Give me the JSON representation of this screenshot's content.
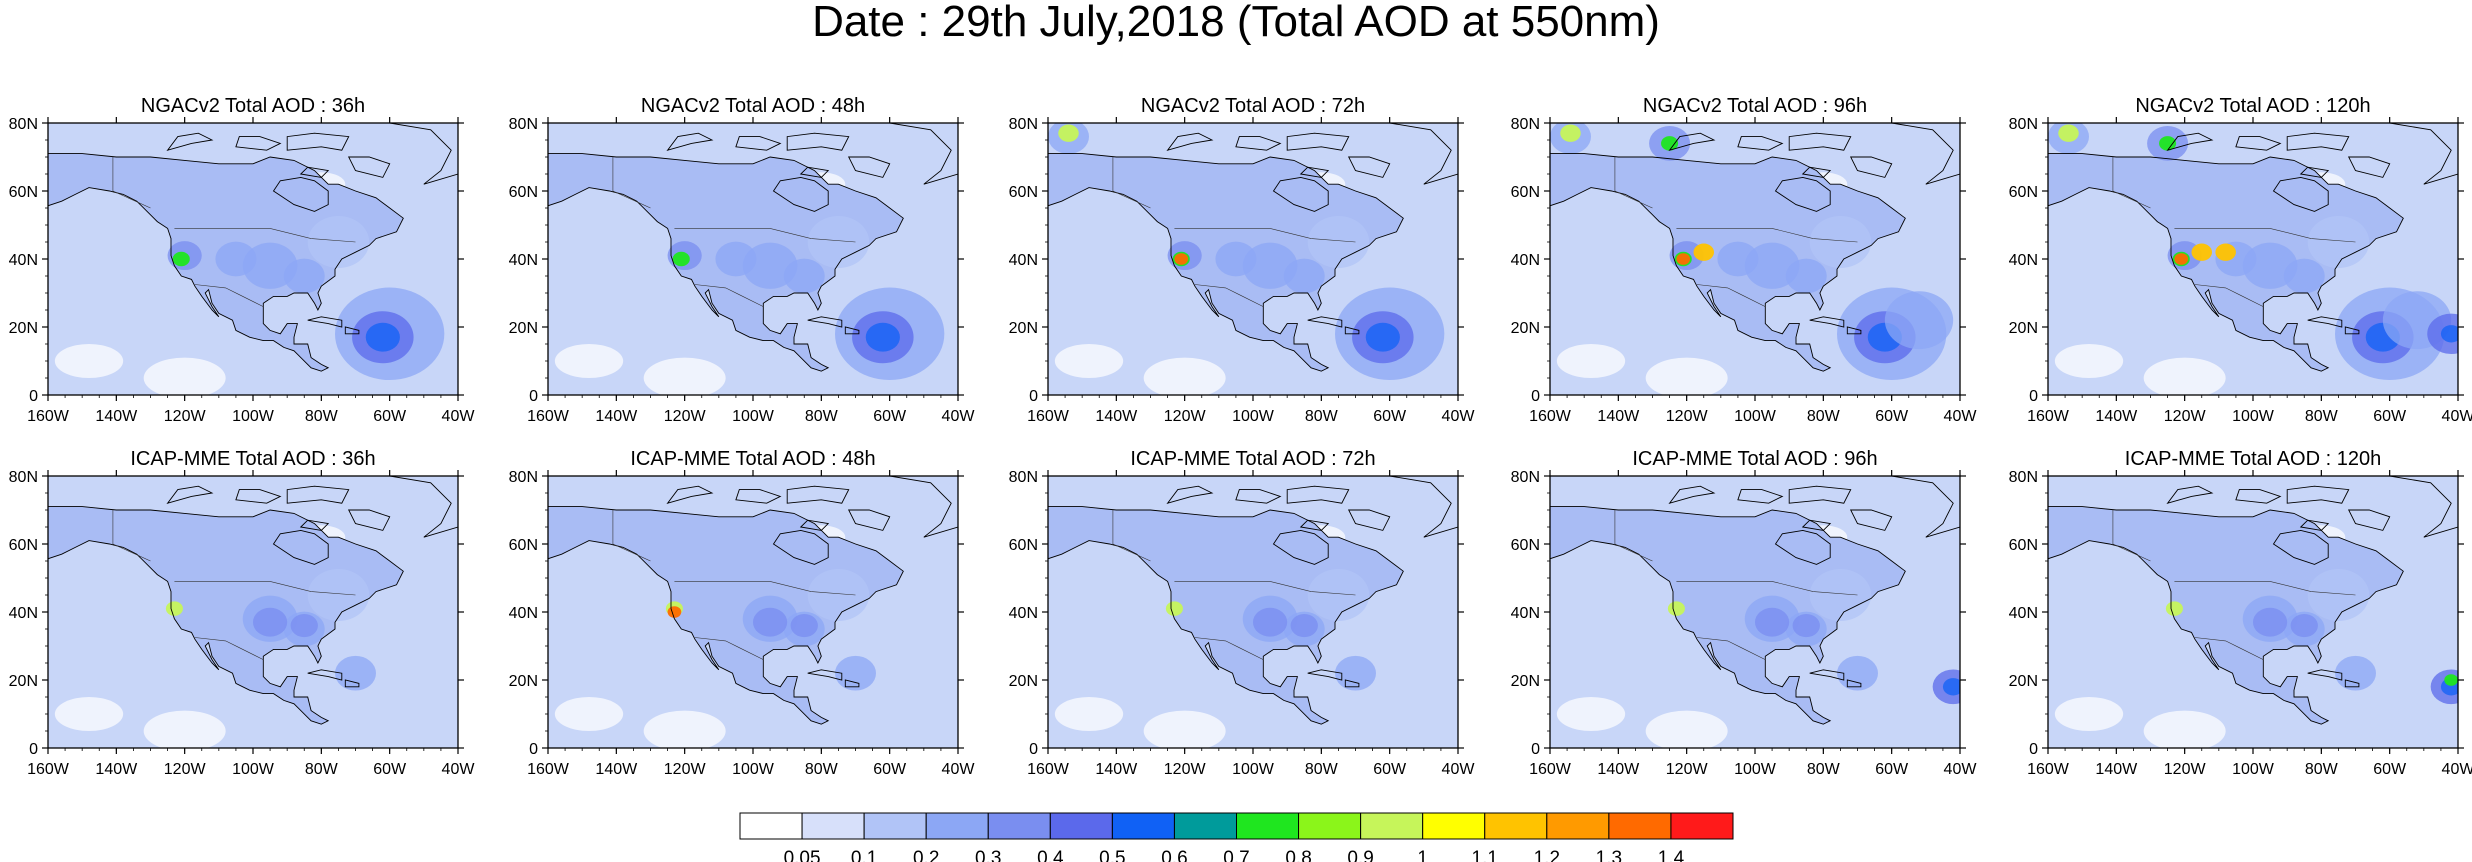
{
  "title": "Date : 29th July,2018 (Total AOD at 550nm)",
  "colors": {
    "coast": "#000000",
    "ocean_base": "#c8d6f8",
    "land_base": "#a9bcf4"
  },
  "lat_ticks": [
    "80N",
    "60N",
    "40N",
    "20N",
    "0"
  ],
  "lon_ticks": [
    "160W",
    "140W",
    "120W",
    "100W",
    "80W",
    "60W",
    "40W"
  ],
  "panels": [
    {
      "row": 0,
      "col": 0,
      "title": "NGACv2 Total AOD : 36h",
      "model": "NGACv2",
      "lead": "36h"
    },
    {
      "row": 0,
      "col": 1,
      "title": "NGACv2 Total AOD : 48h",
      "model": "NGACv2",
      "lead": "48h"
    },
    {
      "row": 0,
      "col": 2,
      "title": "NGACv2 Total AOD : 72h",
      "model": "NGACv2",
      "lead": "72h"
    },
    {
      "row": 0,
      "col": 3,
      "title": "NGACv2 Total AOD : 96h",
      "model": "NGACv2",
      "lead": "96h"
    },
    {
      "row": 0,
      "col": 4,
      "title": "NGACv2 Total AOD : 120h",
      "model": "NGACv2",
      "lead": "120h"
    },
    {
      "row": 1,
      "col": 0,
      "title": "ICAP-MME Total AOD : 36h",
      "model": "ICAP-MME",
      "lead": "36h"
    },
    {
      "row": 1,
      "col": 1,
      "title": "ICAP-MME Total AOD : 48h",
      "model": "ICAP-MME",
      "lead": "48h"
    },
    {
      "row": 1,
      "col": 2,
      "title": "ICAP-MME Total AOD : 72h",
      "model": "ICAP-MME",
      "lead": "72h"
    },
    {
      "row": 1,
      "col": 3,
      "title": "ICAP-MME Total AOD : 96h",
      "model": "ICAP-MME",
      "lead": "96h"
    },
    {
      "row": 1,
      "col": 4,
      "title": "ICAP-MME Total AOD : 120h",
      "model": "ICAP-MME",
      "lead": "120h"
    }
  ],
  "colorbar": {
    "labels": [
      "0.05",
      "0.1",
      "0.2",
      "0.3",
      "0.4",
      "0.5",
      "0.6",
      "0.7",
      "0.8",
      "0.9",
      "1",
      "1.1",
      "1.2",
      "1.3",
      "1.4"
    ],
    "colors": [
      "#ffffff",
      "#d7e0fa",
      "#b1c4f7",
      "#8ca7f5",
      "#7a8ef0",
      "#5b69eb",
      "#1061f5",
      "#009b9b",
      "#1fe61f",
      "#8bf51a",
      "#c6f55a",
      "#ffff00",
      "#ffc300",
      "#ff9a00",
      "#ff6a00",
      "#ff1a1a"
    ]
  }
}
